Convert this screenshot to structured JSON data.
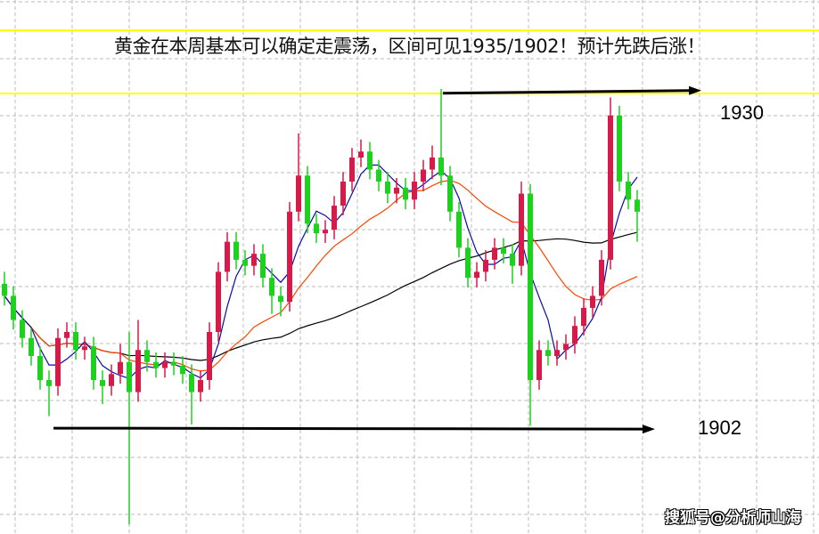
{
  "title": "黄金在本周基本可以确定走震荡，区间可见1935/1902！预计先跌后涨！",
  "watermark": "搜狐号@分析师山海",
  "colors": {
    "up": "#d41b4a",
    "down": "#1fd11f",
    "ma_short": "#0a0aa8",
    "ma_mid": "#ff4400",
    "ma_long": "#000000",
    "band_line": "#ffff00",
    "grid": "#bbbbbb"
  },
  "chart_data": {
    "type": "candlestick",
    "title": "黄金在本周基本可以确定走震荡，区间可见1935/1902！预计先跌后涨！",
    "ylim": [
      1893.2,
      1937.6
    ],
    "grid": true,
    "annotations": [
      {
        "label": "1930",
        "level": 1930,
        "type": "arrow"
      },
      {
        "label": "1902",
        "level": 1902,
        "type": "arrow"
      }
    ],
    "moving_averages": [
      "ma_short",
      "ma_mid",
      "ma_long"
    ],
    "candles": [
      [
        1914.0,
        1915.0,
        1912.2,
        1913.0
      ],
      [
        1913.0,
        1913.8,
        1910.2,
        1911.0
      ],
      [
        1911.0,
        1911.8,
        1908.7,
        1909.5
      ],
      [
        1909.5,
        1910.3,
        1907.2,
        1908.0
      ],
      [
        1908.0,
        1908.8,
        1905.2,
        1906.0
      ],
      [
        1906.0,
        1906.8,
        1903.0,
        1905.5
      ],
      [
        1905.5,
        1910.3,
        1904.7,
        1909.5
      ],
      [
        1909.5,
        1910.8,
        1908.7,
        1910.0
      ],
      [
        1910.0,
        1910.8,
        1907.7,
        1908.5
      ],
      [
        1908.5,
        1909.6,
        1907.7,
        1908.8
      ],
      [
        1908.8,
        1909.6,
        1905.2,
        1906.0
      ],
      [
        1906.0,
        1906.8,
        1904.0,
        1905.5
      ],
      [
        1905.5,
        1907.3,
        1904.7,
        1906.5
      ],
      [
        1906.5,
        1909.0,
        1905.7,
        1907.5
      ],
      [
        1907.5,
        1910.0,
        1894.0,
        1905.0
      ],
      [
        1905.0,
        1911.0,
        1904.2,
        1908.5
      ],
      [
        1908.5,
        1909.3,
        1906.7,
        1907.5
      ],
      [
        1907.5,
        1908.3,
        1906.2,
        1907.0
      ],
      [
        1907.0,
        1908.3,
        1906.2,
        1907.5
      ],
      [
        1907.5,
        1908.3,
        1906.4,
        1907.2
      ],
      [
        1907.2,
        1908.0,
        1905.7,
        1906.5
      ],
      [
        1906.5,
        1907.3,
        1902.3,
        1905.0
      ],
      [
        1905.0,
        1906.8,
        1904.2,
        1906.0
      ],
      [
        1906.0,
        1910.8,
        1905.2,
        1910.0
      ],
      [
        1910.0,
        1915.8,
        1909.2,
        1915.0
      ],
      [
        1915.0,
        1918.3,
        1914.2,
        1917.5
      ],
      [
        1917.5,
        1918.3,
        1915.2,
        1916.0
      ],
      [
        1916.0,
        1916.8,
        1914.7,
        1915.5
      ],
      [
        1915.5,
        1917.3,
        1914.7,
        1916.5
      ],
      [
        1916.5,
        1917.3,
        1913.7,
        1914.5
      ],
      [
        1914.5,
        1915.3,
        1911.5,
        1913.0
      ],
      [
        1913.0,
        1913.8,
        1911.3,
        1912.5
      ],
      [
        1912.5,
        1920.8,
        1911.7,
        1920.0
      ],
      [
        1920.0,
        1926.5,
        1919.2,
        1923.0
      ],
      [
        1923.0,
        1923.8,
        1918.2,
        1919.0
      ],
      [
        1919.0,
        1919.8,
        1917.4,
        1918.2
      ],
      [
        1918.2,
        1919.3,
        1917.4,
        1918.5
      ],
      [
        1918.5,
        1921.3,
        1917.7,
        1920.5
      ],
      [
        1920.5,
        1923.3,
        1919.7,
        1922.5
      ],
      [
        1922.5,
        1925.3,
        1921.7,
        1924.5
      ],
      [
        1924.5,
        1926.0,
        1923.7,
        1925.0
      ],
      [
        1925.0,
        1925.8,
        1922.7,
        1923.5
      ],
      [
        1923.5,
        1924.3,
        1921.7,
        1922.5
      ],
      [
        1922.5,
        1923.3,
        1920.7,
        1921.5
      ],
      [
        1921.5,
        1922.8,
        1920.7,
        1922.0
      ],
      [
        1922.0,
        1922.8,
        1920.2,
        1921.0
      ],
      [
        1921.0,
        1923.3,
        1920.2,
        1922.5
      ],
      [
        1922.5,
        1924.3,
        1921.7,
        1923.5
      ],
      [
        1923.5,
        1925.5,
        1922.7,
        1924.5
      ],
      [
        1924.5,
        1930.2,
        1922.2,
        1923.0
      ],
      [
        1923.0,
        1923.8,
        1919.2,
        1920.0
      ],
      [
        1920.0,
        1920.8,
        1916.2,
        1917.0
      ],
      [
        1917.0,
        1917.8,
        1913.7,
        1914.5
      ],
      [
        1914.5,
        1915.8,
        1913.7,
        1915.0
      ],
      [
        1915.0,
        1916.8,
        1914.2,
        1916.0
      ],
      [
        1916.0,
        1917.8,
        1915.2,
        1917.0
      ],
      [
        1917.0,
        1917.8,
        1915.7,
        1916.5
      ],
      [
        1916.5,
        1917.3,
        1914.0,
        1915.5
      ],
      [
        1915.5,
        1922.5,
        1914.7,
        1921.5
      ],
      [
        1921.5,
        1922.3,
        1902.2,
        1906.0
      ],
      [
        1906.0,
        1909.3,
        1905.2,
        1908.5
      ],
      [
        1908.5,
        1909.3,
        1907.2,
        1908.0
      ],
      [
        1908.0,
        1909.3,
        1907.2,
        1908.5
      ],
      [
        1908.5,
        1909.8,
        1907.7,
        1909.0
      ],
      [
        1909.0,
        1911.3,
        1908.2,
        1910.5
      ],
      [
        1910.5,
        1912.8,
        1909.7,
        1912.0
      ],
      [
        1912.0,
        1913.8,
        1911.2,
        1913.0
      ],
      [
        1913.0,
        1916.8,
        1912.2,
        1916.0
      ],
      [
        1916.0,
        1929.5,
        1915.2,
        1928.0
      ],
      [
        1928.0,
        1928.8,
        1921.7,
        1922.5
      ],
      [
        1922.5,
        1923.3,
        1920.2,
        1921.0
      ],
      [
        1921.0,
        1921.8,
        1917.5,
        1920.0
      ]
    ]
  }
}
